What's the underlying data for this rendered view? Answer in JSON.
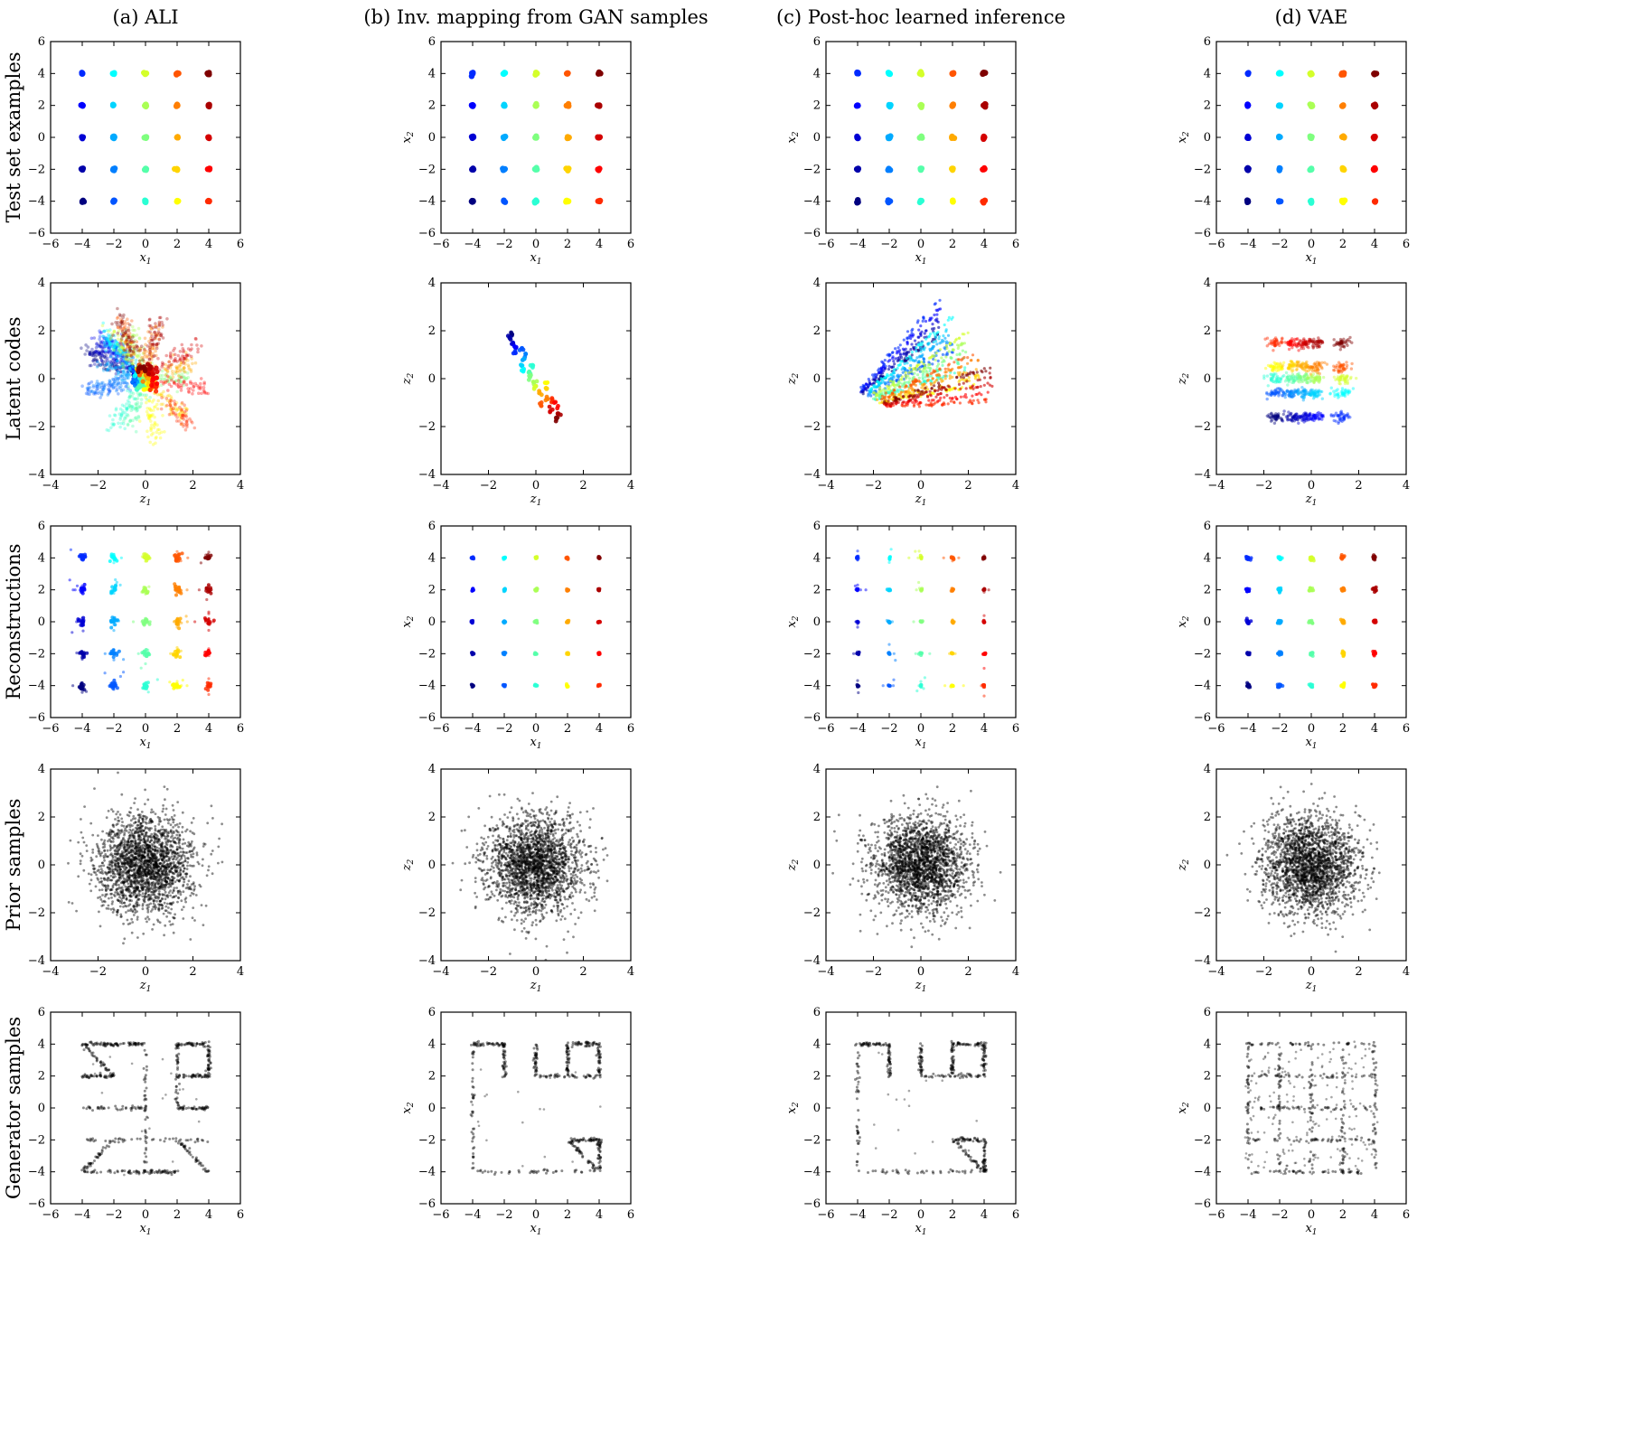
{
  "columns": [
    "(a) ALI",
    "(b) Inv. mapping from GAN samples",
    "(c) Post-hoc learned inference",
    "(d) VAE"
  ],
  "rows": [
    "Test set examples",
    "Latent codes",
    "Reconstructions",
    "Prior samples",
    "Generator samples"
  ],
  "chart_data": {
    "type": "scatter",
    "layout": "grid 5 rows x 4 columns",
    "colormap": "jet",
    "colormap_stops": [
      "#00007f",
      "#0000ff",
      "#007fff",
      "#00ffff",
      "#7fff7f",
      "#ffff00",
      "#ff7f00",
      "#ff0000",
      "#7f0000"
    ],
    "grid": false,
    "grid_points": [
      -4,
      -2,
      0,
      2,
      4
    ],
    "panel_types": {
      "data_space": {
        "xlabel": "x1",
        "ylabel": "x2",
        "xlim": [
          -6,
          6
        ],
        "ylim": [
          -6,
          6
        ],
        "xticks": [
          "−6",
          "−4",
          "−2",
          "0",
          "2",
          "4",
          "6"
        ],
        "yticks": [
          "−6",
          "−4",
          "−2",
          "0",
          "2",
          "4",
          "6"
        ]
      },
      "latent_space": {
        "xlabel": "z1",
        "ylabel": "z2",
        "xlim": [
          -4,
          4
        ],
        "ylim": [
          -4,
          4
        ],
        "xticks": [
          "−4",
          "−2",
          "0",
          "2",
          "4"
        ],
        "yticks": [
          "−4",
          "−2",
          "0",
          "2",
          "4"
        ]
      }
    },
    "rows": [
      {
        "label": "Test set examples",
        "space": "data_space",
        "content": "25 coloured clusters at (x1, x2) with x1, x2 in {-4,-2,0,2,4}"
      },
      {
        "label": "Latent codes",
        "space": "latent_space",
        "content": "coloured encoded test points, per model"
      },
      {
        "label": "Reconstructions",
        "space": "data_space",
        "content": "coloured reconstructions of test points, per model"
      },
      {
        "label": "Prior samples",
        "space": "latent_space",
        "content": "black samples from standard normal prior, mean 0, sd 1"
      },
      {
        "label": "Generator samples",
        "space": "data_space",
        "content": "black generator samples, per model"
      }
    ]
  }
}
